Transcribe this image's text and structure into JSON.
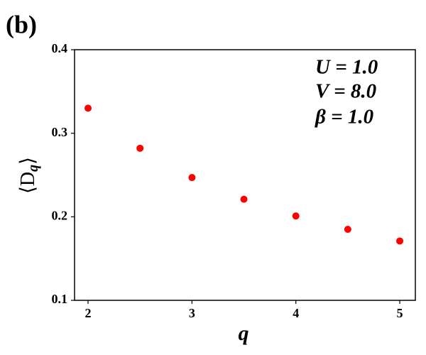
{
  "chart_data": {
    "type": "scatter",
    "panel_label": "(b)",
    "xlabel": "q",
    "ylabel": [
      "⟨D",
      "q",
      "⟩"
    ],
    "annotations": [
      "U = 1.0",
      "V = 8.0",
      "β = 1.0"
    ],
    "x": [
      2,
      2.5,
      3,
      3.5,
      4,
      4.5,
      5
    ],
    "series": [
      {
        "color": "#ff0000",
        "values": [
          0.33,
          0.282,
          0.247,
          0.221,
          0.201,
          0.185,
          0.171
        ]
      }
    ],
    "xlim": [
      1.87,
      5.15
    ],
    "ylim": [
      0.1,
      0.4
    ],
    "xticks": [
      2,
      3,
      4,
      5
    ],
    "yticks": [
      0.1,
      0.2,
      0.3,
      0.4
    ],
    "grid": false
  }
}
